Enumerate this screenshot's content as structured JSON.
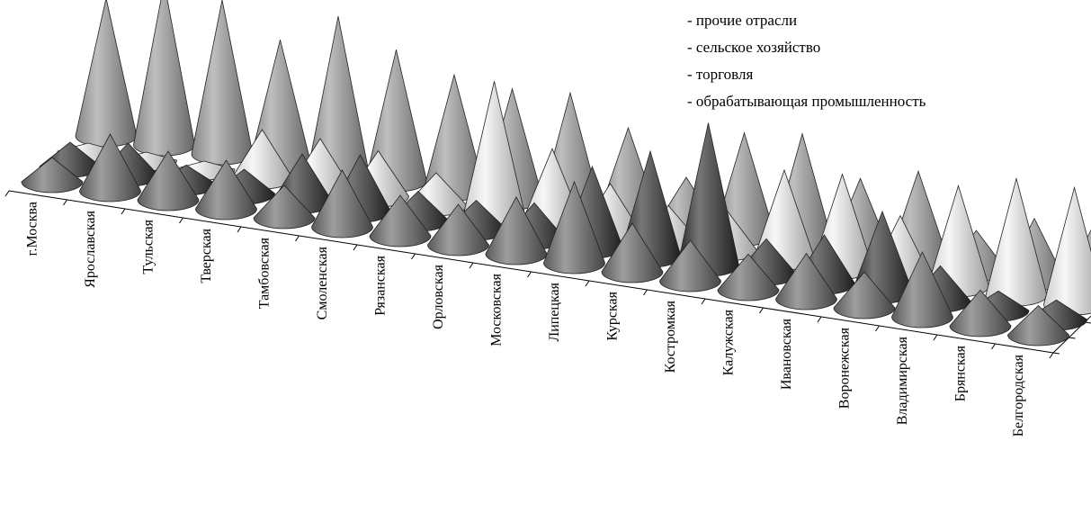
{
  "chart_data": {
    "type": "bar",
    "shape": "3d-cone",
    "categories": [
      "г.Москва",
      "Ярославская",
      "Тульская",
      "Тверская",
      "Тамбовская",
      "Смоленская",
      "Рязанская",
      "Орловская",
      "Московская",
      "Липецкая",
      "Курская",
      "Костромкая",
      "Калужская",
      "Ивановская",
      "Воронежская",
      "Владимирская",
      "Брянская",
      "Белгородская"
    ],
    "series": [
      {
        "name": "- прочие отрасли",
        "color": "#9c9c9c",
        "values": [
          0.85,
          1.0,
          0.95,
          0.76,
          0.96,
          0.81,
          0.71,
          0.68,
          0.71,
          0.55,
          0.3,
          0.63,
          0.68,
          0.46,
          0.56,
          0.25,
          0.38,
          0.38
        ]
      },
      {
        "name": "- сельское хозяйство",
        "color": "#f2f2f2",
        "values": [
          0.05,
          0.05,
          0.05,
          0.3,
          0.3,
          0.28,
          0.2,
          0.82,
          0.46,
          0.3,
          0.22,
          0.25,
          0.55,
          0.58,
          0.38,
          0.62,
          0.72,
          0.72
        ]
      },
      {
        "name": "- торговля",
        "color": "#2e2e2e",
        "values": [
          0.15,
          0.2,
          0.12,
          0.15,
          0.3,
          0.35,
          0.18,
          0.18,
          0.22,
          0.5,
          0.65,
          0.88,
          0.22,
          0.3,
          0.5,
          0.22,
          0.12,
          0.12
        ]
      },
      {
        "name": "- обрабатывающая промышленность",
        "color": "#6a6a6a",
        "values": [
          0.15,
          0.35,
          0.3,
          0.3,
          0.2,
          0.35,
          0.25,
          0.25,
          0.35,
          0.5,
          0.3,
          0.25,
          0.22,
          0.28,
          0.22,
          0.4,
          0.22,
          0.18
        ]
      }
    ],
    "legend_position": "top-right",
    "grid": false
  }
}
